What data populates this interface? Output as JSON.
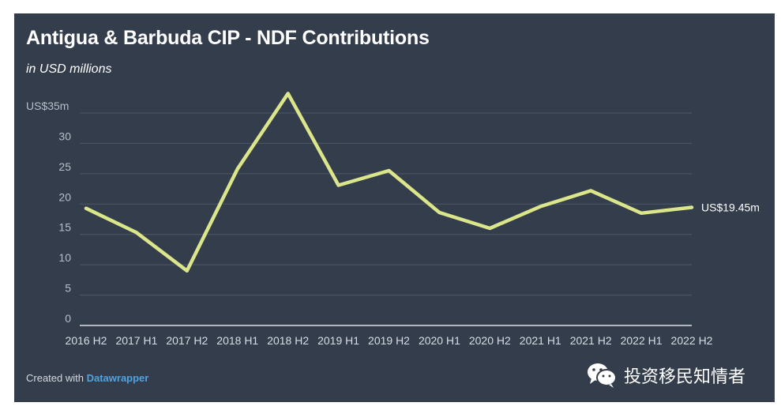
{
  "title": "Antigua & Barbuda CIP - NDF Contributions",
  "subtitle": "in USD millions",
  "footer": {
    "prefix": "Created with ",
    "brand": "Datawrapper"
  },
  "watermark": {
    "text": "投资移民知情者",
    "icon": "wechat-icon"
  },
  "colors": {
    "background": "#343d4c",
    "line": "#dbe68a",
    "grid": "#4e5868",
    "text": "#ffffff",
    "axis_text": "#d9dde3",
    "brand": "#4fa3e0"
  },
  "chart_data": {
    "type": "line",
    "title": "Antigua & Barbuda CIP - NDF Contributions",
    "ylabel": "in USD millions",
    "xlabel": "",
    "ylim": [
      0,
      35
    ],
    "y_ticks": [
      0,
      5,
      10,
      15,
      20,
      25,
      30,
      35
    ],
    "y_tick_labels": [
      "0",
      "5",
      "10",
      "15",
      "20",
      "25",
      "30",
      "US$35m"
    ],
    "grid": true,
    "legend": "none",
    "categories": [
      "2016 H2",
      "2017 H1",
      "2017 H2",
      "2018 H1",
      "2018 H2",
      "2019 H1",
      "2019 H2",
      "2020 H1",
      "2020 H2",
      "2021 H1",
      "2021 H2",
      "2022 H1",
      "2022 H2"
    ],
    "series": [
      {
        "values": [
          19.3,
          15.3,
          9.0,
          25.8,
          38.2,
          23.1,
          25.5,
          18.6,
          16.0,
          19.6,
          22.2,
          18.5,
          19.45
        ]
      }
    ],
    "end_label": "US$19.45m"
  }
}
